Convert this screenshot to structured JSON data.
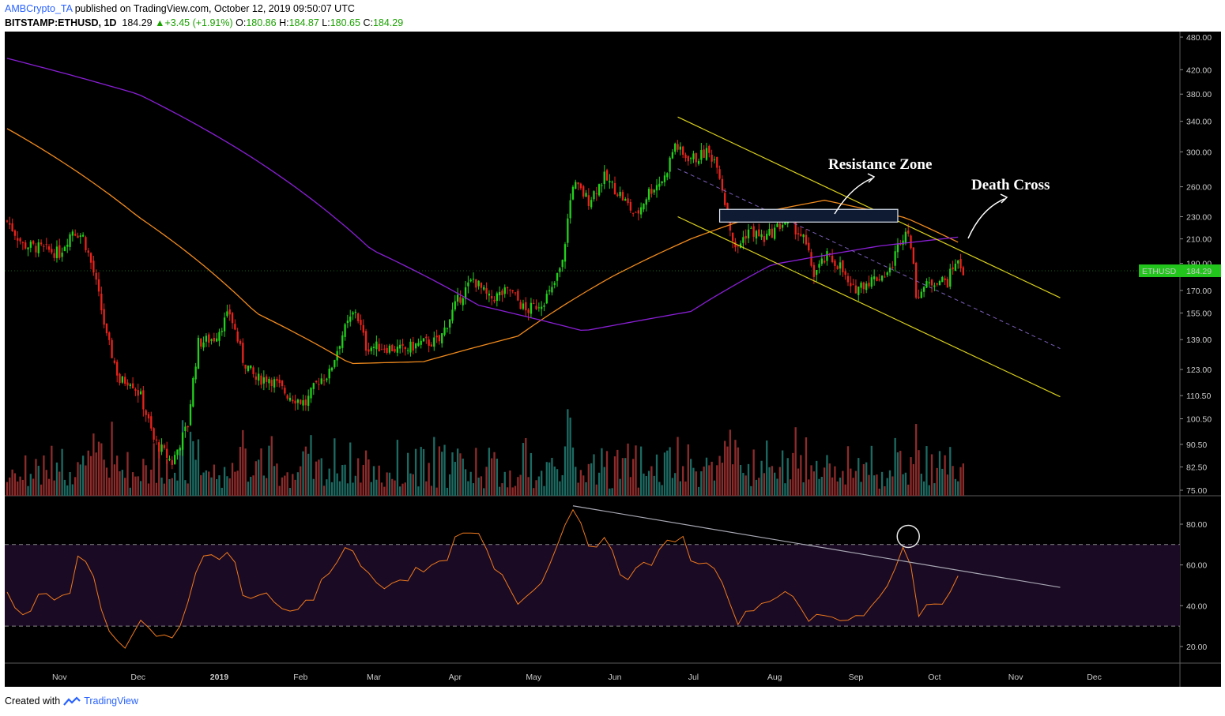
{
  "header": {
    "author": "AMBCrypto_TA",
    "published": "published on TradingView.com, October 12, 2019 09:50:07 UTC",
    "symbol": "BITSTAMP:ETHUSD, 1D",
    "last": "184.29",
    "change": "+3.45 (+1.91%)",
    "o_label": "O:",
    "o_value": "180.86",
    "h_label": "H:",
    "h_value": "184.87",
    "l_label": "L:",
    "l_value": "180.65",
    "c_label": "C:",
    "c_value": "184.29"
  },
  "footer": {
    "created_with": "Created with",
    "brand": "TradingView"
  },
  "colors": {
    "background": "#000000",
    "up": "#22d11c",
    "down": "#e8231c",
    "vol_up": "#1c6b63",
    "vol_down": "#8e2b2b",
    "ma_short": "#f08a1c",
    "ma_long": "#8a1fd6",
    "channel": "#d9cf1a",
    "rsi": "#f07a1c",
    "rsi_band": "#1a0a24",
    "price_tag": "#22c51c"
  },
  "chart_data": [
    {
      "type": "candlestick",
      "symbol": "ETHUSD",
      "timeframe": "1D",
      "price_tag": {
        "label": "ETHUSD",
        "value": "184.29"
      },
      "y_scale": "log",
      "ylim": [
        75,
        480
      ],
      "y_ticks": [
        "480.00",
        "420.00",
        "380.00",
        "340.00",
        "300.00",
        "260.00",
        "230.00",
        "210.00",
        "190.00",
        "170.00",
        "155.00",
        "139.00",
        "123.00",
        "110.50",
        "100.50",
        "90.50",
        "82.50",
        "75.00"
      ],
      "x_ticks": [
        "Nov",
        "Dec",
        "2019",
        "Feb",
        "Mar",
        "Apr",
        "May",
        "Jun",
        "Jul",
        "Aug",
        "Sep",
        "Oct",
        "Nov",
        "Dec"
      ],
      "x_range": [
        "2018-10-12",
        "2019-12-31"
      ],
      "approx_close_path": [
        [
          "2018-10-12",
          226
        ],
        [
          "2018-10-18",
          205
        ],
        [
          "2018-10-25",
          202
        ],
        [
          "2018-11-01",
          198
        ],
        [
          "2018-11-06",
          218
        ],
        [
          "2018-11-10",
          212
        ],
        [
          "2018-11-14",
          183
        ],
        [
          "2018-11-19",
          140
        ],
        [
          "2018-11-24",
          117
        ],
        [
          "2018-11-28",
          118
        ],
        [
          "2018-12-02",
          110
        ],
        [
          "2018-12-07",
          92
        ],
        [
          "2018-12-14",
          84
        ],
        [
          "2018-12-20",
          98
        ],
        [
          "2018-12-24",
          137
        ],
        [
          "2018-12-30",
          140
        ],
        [
          "2019-01-05",
          155
        ],
        [
          "2019-01-10",
          128
        ],
        [
          "2019-01-15",
          118
        ],
        [
          "2019-01-20",
          119
        ],
        [
          "2019-01-27",
          111
        ],
        [
          "2019-02-03",
          107
        ],
        [
          "2019-02-08",
          118
        ],
        [
          "2019-02-12",
          121
        ],
        [
          "2019-02-17",
          142
        ],
        [
          "2019-02-22",
          157
        ],
        [
          "2019-02-26",
          135
        ],
        [
          "2019-03-05",
          135
        ],
        [
          "2019-03-12",
          133
        ],
        [
          "2019-03-19",
          137
        ],
        [
          "2019-03-26",
          138
        ],
        [
          "2019-04-02",
          163
        ],
        [
          "2019-04-08",
          178
        ],
        [
          "2019-04-14",
          164
        ],
        [
          "2019-04-22",
          170
        ],
        [
          "2019-04-28",
          156
        ],
        [
          "2019-05-04",
          162
        ],
        [
          "2019-05-08",
          170
        ],
        [
          "2019-05-12",
          190
        ],
        [
          "2019-05-16",
          264
        ],
        [
          "2019-05-22",
          246
        ],
        [
          "2019-05-28",
          270
        ],
        [
          "2019-06-03",
          252
        ],
        [
          "2019-06-09",
          230
        ],
        [
          "2019-06-14",
          255
        ],
        [
          "2019-06-20",
          270
        ],
        [
          "2019-06-24",
          310
        ],
        [
          "2019-06-27",
          295
        ],
        [
          "2019-07-02",
          292
        ],
        [
          "2019-07-06",
          300
        ],
        [
          "2019-07-10",
          288
        ],
        [
          "2019-07-14",
          230
        ],
        [
          "2019-07-17",
          200
        ],
        [
          "2019-07-22",
          218
        ],
        [
          "2019-07-28",
          210
        ],
        [
          "2019-08-02",
          220
        ],
        [
          "2019-08-06",
          228
        ],
        [
          "2019-08-12",
          210
        ],
        [
          "2019-08-16",
          182
        ],
        [
          "2019-08-21",
          195
        ],
        [
          "2019-08-26",
          188
        ],
        [
          "2019-08-30",
          170
        ],
        [
          "2019-09-04",
          175
        ],
        [
          "2019-09-10",
          180
        ],
        [
          "2019-09-14",
          184
        ],
        [
          "2019-09-18",
          210
        ],
        [
          "2019-09-21",
          220
        ],
        [
          "2019-09-24",
          168
        ],
        [
          "2019-09-27",
          172
        ],
        [
          "2019-10-02",
          178
        ],
        [
          "2019-10-06",
          176
        ],
        [
          "2019-10-09",
          192
        ],
        [
          "2019-10-12",
          184.29
        ]
      ],
      "annotations": [
        {
          "text": "Resistance Zone",
          "kind": "rectangle",
          "range": [
            225,
            237
          ],
          "from": "2019-07-11",
          "to": "2019-09-17"
        },
        {
          "text": "Death Cross",
          "kind": "arrow"
        }
      ],
      "moving_averages": [
        {
          "color": "#f08a1c",
          "approx_path": [
            [
              "2018-10-12",
              330
            ],
            [
              "2018-12-01",
              230
            ],
            [
              "2019-01-15",
              155
            ],
            [
              "2019-02-20",
              126
            ],
            [
              "2019-03-20",
              127
            ],
            [
              "2019-04-25",
              141
            ],
            [
              "2019-05-31",
              180
            ],
            [
              "2019-06-30",
              210
            ],
            [
              "2019-07-31",
              236
            ],
            [
              "2019-08-20",
              246
            ],
            [
              "2019-09-20",
              229
            ],
            [
              "2019-10-12",
              205
            ]
          ]
        },
        {
          "color": "#8a1fd6",
          "approx_path": [
            [
              "2018-10-12",
              440
            ],
            [
              "2018-12-01",
              380
            ],
            [
              "2019-01-15",
              290
            ],
            [
              "2019-02-28",
              201
            ],
            [
              "2019-04-10",
              160
            ],
            [
              "2019-05-20",
              144
            ],
            [
              "2019-06-30",
              156
            ],
            [
              "2019-07-31",
              189
            ],
            [
              "2019-09-10",
              204
            ],
            [
              "2019-10-12",
              212
            ]
          ]
        }
      ],
      "channel": {
        "upper": [
          [
            "2019-06-25",
            346
          ],
          [
            "2019-11-18",
            165
          ]
        ],
        "mid": [
          [
            "2019-06-25",
            280
          ],
          [
            "2019-11-18",
            134
          ]
        ],
        "lower": [
          [
            "2019-06-25",
            230
          ],
          [
            "2019-11-18",
            110
          ]
        ]
      }
    },
    {
      "type": "bar",
      "name": "Volume",
      "note": "relative daily volume, colored by candle direction"
    },
    {
      "type": "line",
      "name": "RSI",
      "ylim": [
        13,
        92
      ],
      "y_ticks": [
        "80.00",
        "60.00",
        "40.00",
        "20.00"
      ],
      "bands": [
        30,
        70
      ],
      "approx_path": [
        [
          "2018-10-12",
          48
        ],
        [
          "2018-10-16",
          33
        ],
        [
          "2018-10-25",
          44
        ],
        [
          "2018-11-04",
          43
        ],
        [
          "2018-11-08",
          66
        ],
        [
          "2018-11-14",
          54
        ],
        [
          "2018-11-19",
          31
        ],
        [
          "2018-11-25",
          17
        ],
        [
          "2018-12-02",
          30
        ],
        [
          "2018-12-08",
          24
        ],
        [
          "2018-12-15",
          24
        ],
        [
          "2018-12-21",
          45
        ],
        [
          "2018-12-26",
          66
        ],
        [
          "2019-01-02",
          62
        ],
        [
          "2019-01-06",
          67
        ],
        [
          "2019-01-10",
          44
        ],
        [
          "2019-01-18",
          45
        ],
        [
          "2019-01-28",
          38
        ],
        [
          "2019-02-06",
          41
        ],
        [
          "2019-02-10",
          56
        ],
        [
          "2019-02-16",
          63
        ],
        [
          "2019-02-20",
          73
        ],
        [
          "2019-02-24",
          58
        ],
        [
          "2019-03-04",
          50
        ],
        [
          "2019-03-14",
          55
        ],
        [
          "2019-03-26",
          59
        ],
        [
          "2019-04-02",
          73
        ],
        [
          "2019-04-09",
          76
        ],
        [
          "2019-04-16",
          58
        ],
        [
          "2019-04-26",
          41
        ],
        [
          "2019-05-04",
          54
        ],
        [
          "2019-05-10",
          70
        ],
        [
          "2019-05-16",
          89
        ],
        [
          "2019-05-22",
          72
        ],
        [
          "2019-05-28",
          71
        ],
        [
          "2019-06-04",
          55
        ],
        [
          "2019-06-10",
          57
        ],
        [
          "2019-06-16",
          62
        ],
        [
          "2019-06-22",
          72
        ],
        [
          "2019-06-26",
          76
        ],
        [
          "2019-07-02",
          58
        ],
        [
          "2019-07-08",
          62
        ],
        [
          "2019-07-15",
          38
        ],
        [
          "2019-07-19",
          32
        ],
        [
          "2019-07-25",
          40
        ],
        [
          "2019-08-02",
          47
        ],
        [
          "2019-08-08",
          42
        ],
        [
          "2019-08-16",
          33
        ],
        [
          "2019-08-21",
          38
        ],
        [
          "2019-08-29",
          33
        ],
        [
          "2019-09-06",
          37
        ],
        [
          "2019-09-12",
          44
        ],
        [
          "2019-09-18",
          65
        ],
        [
          "2019-09-21",
          75
        ],
        [
          "2019-09-24",
          36
        ],
        [
          "2019-09-30",
          40
        ],
        [
          "2019-10-06",
          45
        ],
        [
          "2019-10-09",
          57
        ],
        [
          "2019-10-12",
          51
        ]
      ],
      "trendline": [
        [
          "2019-05-16",
          89
        ],
        [
          "2019-11-18",
          49
        ]
      ],
      "highlight": {
        "at": "2019-09-21",
        "value": 74
      }
    }
  ]
}
